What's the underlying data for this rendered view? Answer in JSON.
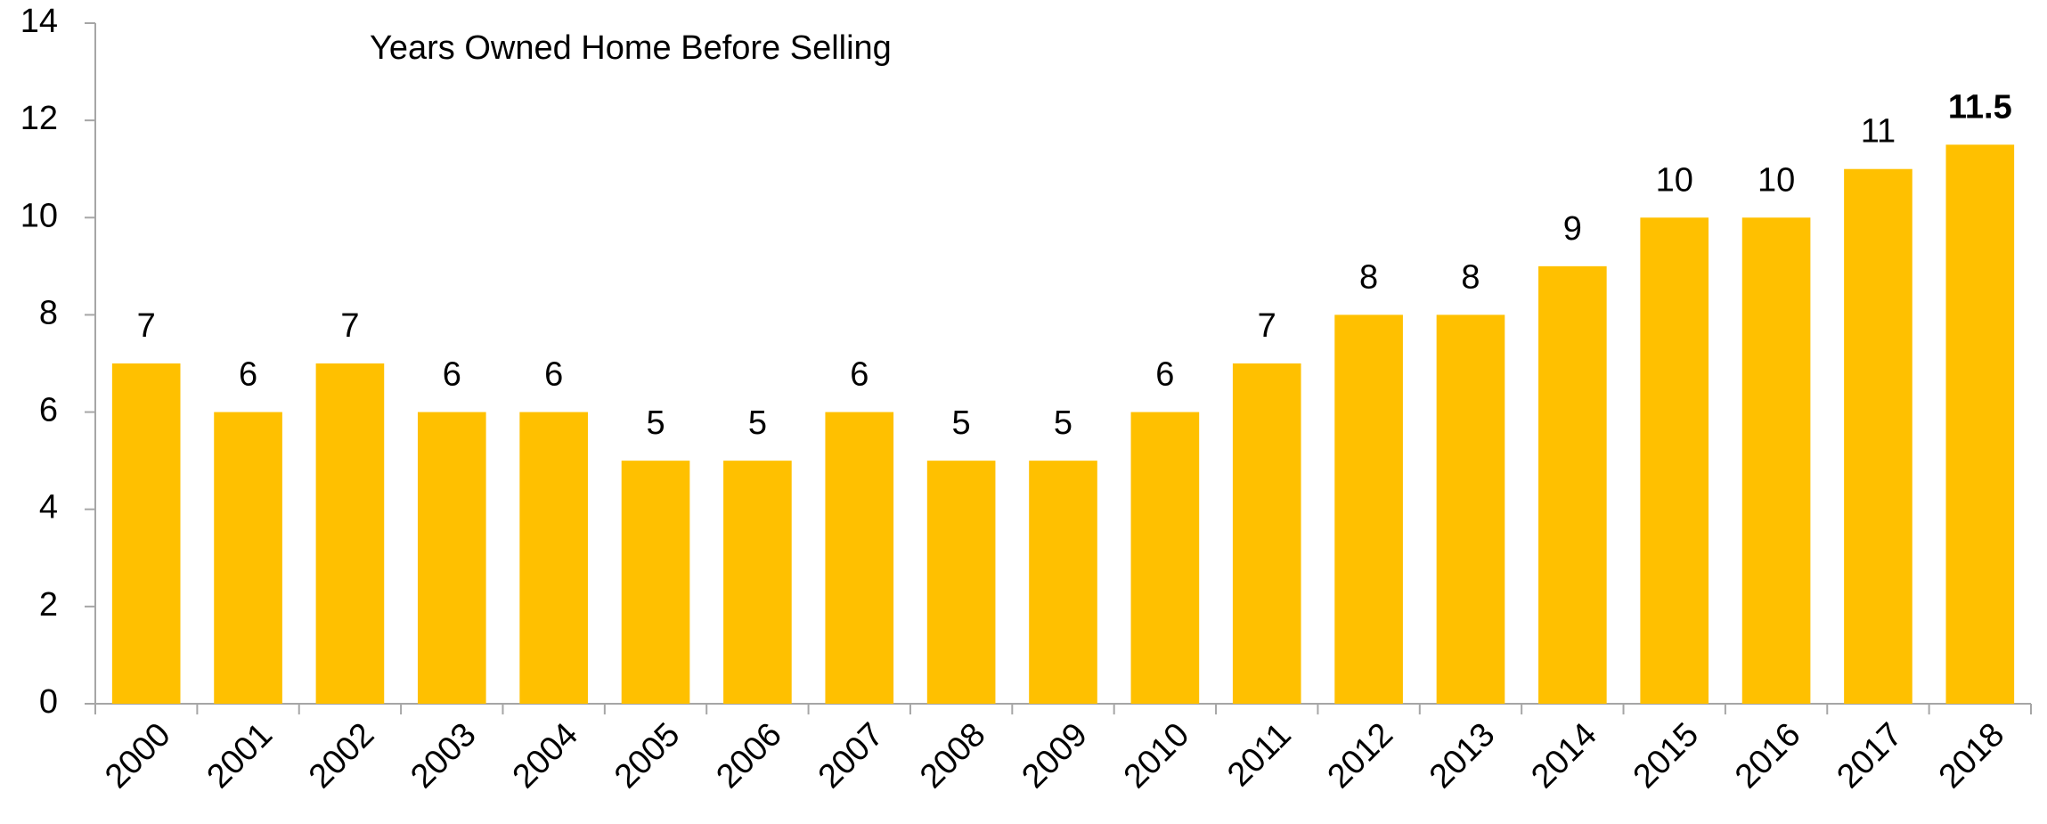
{
  "chart_data": {
    "type": "bar",
    "title": "Years Owned Home Before Selling",
    "categories": [
      "2000",
      "2001",
      "2002",
      "2003",
      "2004",
      "2005",
      "2006",
      "2007",
      "2008",
      "2009",
      "2010",
      "2011",
      "2012",
      "2013",
      "2014",
      "2015",
      "2016",
      "2017",
      "2018"
    ],
    "values": [
      7,
      6,
      7,
      6,
      6,
      5,
      5,
      6,
      5,
      5,
      6,
      7,
      8,
      8,
      9,
      10,
      10,
      11,
      11.5
    ],
    "color": "#ffc000",
    "ylim": [
      0,
      14
    ],
    "yticks": [
      0,
      2,
      4,
      6,
      8,
      10,
      12,
      14
    ],
    "grid": false
  }
}
